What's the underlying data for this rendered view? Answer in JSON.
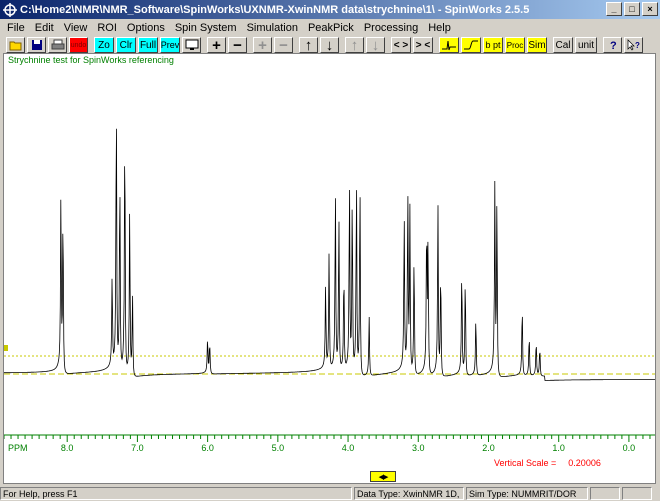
{
  "window": {
    "title": "C:\\Home2\\NMR\\NMR_Software\\SpinWorks\\UXNMR-XwinNMR data\\strychnine\\1\\ - SpinWorks 2.5.5",
    "controls": {
      "minimize": "_",
      "maximize": "□",
      "close": "×"
    }
  },
  "menu": [
    "File",
    "Edit",
    "View",
    "ROI",
    "Options",
    "Spin System",
    "Simulation",
    "PeakPick",
    "Processing",
    "Help"
  ],
  "toolbar": {
    "open": "open-folder-icon",
    "save": "floppy-disk-icon",
    "print": "printer-icon",
    "erase_label": "undo",
    "zo": "Zo",
    "clr": "Clr",
    "full": "Full",
    "prev": "Prev",
    "expand_icon": "monitor-icon",
    "plus": "+",
    "minus": "−",
    "plus_dis": "+",
    "minus_dis": "−",
    "up": "↑",
    "down": "↓",
    "up_dis": "↑",
    "down_dis": "↓",
    "lr_out": "< >",
    "lr_in": "> <",
    "phase_icon": "phase-icon",
    "integrate_icon": "integral-icon",
    "bpt": "b pt",
    "proc": "Proc",
    "sim": "Sim",
    "cal": "Cal",
    "unit": "unit",
    "help_icon": "question-icon",
    "context_help": "context-help-icon"
  },
  "spectrum": {
    "title": "Strychnine test for SpinWorks referencing",
    "axis_unit": "PPM",
    "vertical_scale_label": "Vertical Scale =",
    "vertical_scale_value": "0.20006",
    "trace_color": "#000000",
    "axis_color": "#008000",
    "marker_color": "#c8c800"
  },
  "chart_data": {
    "type": "line",
    "title": "Strychnine test for SpinWorks referencing",
    "xlabel": "PPM",
    "ylabel": "",
    "xlim": [
      8.9,
      -0.4
    ],
    "x_ticks": [
      8.0,
      7.0,
      6.0,
      5.0,
      4.0,
      3.0,
      2.0,
      1.0,
      0.0
    ],
    "x_tick_labels": [
      "8.0",
      "7.0",
      "6.0",
      "5.0",
      "4.0",
      "3.0",
      "2.0",
      "1.0",
      "0.0"
    ],
    "ylim": [
      -0.15,
      1.0
    ],
    "baseline": 0.0,
    "peaks": [
      {
        "ppm": 8.09,
        "height": 0.58
      },
      {
        "ppm": 8.06,
        "height": 0.55
      },
      {
        "ppm": 7.36,
        "height": 0.31
      },
      {
        "ppm": 7.3,
        "height": 0.93
      },
      {
        "ppm": 7.25,
        "height": 0.68
      },
      {
        "ppm": 7.18,
        "height": 0.85
      },
      {
        "ppm": 7.11,
        "height": 0.56
      },
      {
        "ppm": 7.07,
        "height": 0.28
      },
      {
        "ppm": 6.0,
        "height": 0.12
      },
      {
        "ppm": 5.97,
        "height": 0.11
      },
      {
        "ppm": 4.32,
        "height": 0.28
      },
      {
        "ppm": 4.27,
        "height": 0.4
      },
      {
        "ppm": 4.18,
        "height": 0.6
      },
      {
        "ppm": 4.13,
        "height": 0.53
      },
      {
        "ppm": 4.06,
        "height": 0.34
      },
      {
        "ppm": 3.98,
        "height": 0.64
      },
      {
        "ppm": 3.94,
        "height": 0.6
      },
      {
        "ppm": 3.88,
        "height": 0.67
      },
      {
        "ppm": 3.83,
        "height": 0.67
      },
      {
        "ppm": 3.7,
        "height": 0.2
      },
      {
        "ppm": 3.2,
        "height": 0.52
      },
      {
        "ppm": 3.15,
        "height": 0.6
      },
      {
        "ppm": 3.12,
        "height": 0.55
      },
      {
        "ppm": 3.06,
        "height": 0.41
      },
      {
        "ppm": 2.88,
        "height": 0.5
      },
      {
        "ppm": 2.86,
        "height": 0.45
      },
      {
        "ppm": 2.72,
        "height": 0.57
      },
      {
        "ppm": 2.68,
        "height": 0.37
      },
      {
        "ppm": 2.38,
        "height": 0.36
      },
      {
        "ppm": 2.33,
        "height": 0.34
      },
      {
        "ppm": 2.18,
        "height": 0.2
      },
      {
        "ppm": 1.91,
        "height": 0.62
      },
      {
        "ppm": 1.88,
        "height": 0.61
      },
      {
        "ppm": 1.52,
        "height": 0.24
      },
      {
        "ppm": 1.42,
        "height": 0.14
      },
      {
        "ppm": 1.32,
        "height": 0.12
      },
      {
        "ppm": 1.27,
        "height": 0.1
      }
    ],
    "marker_lines": [
      0.06,
      0.0
    ],
    "grid": false
  },
  "status": {
    "help": "For Help, press F1",
    "data_type": "Data Type: XwinNMR 1D,",
    "sim_type": "Sim Type: NUMMRIT/DOR"
  }
}
